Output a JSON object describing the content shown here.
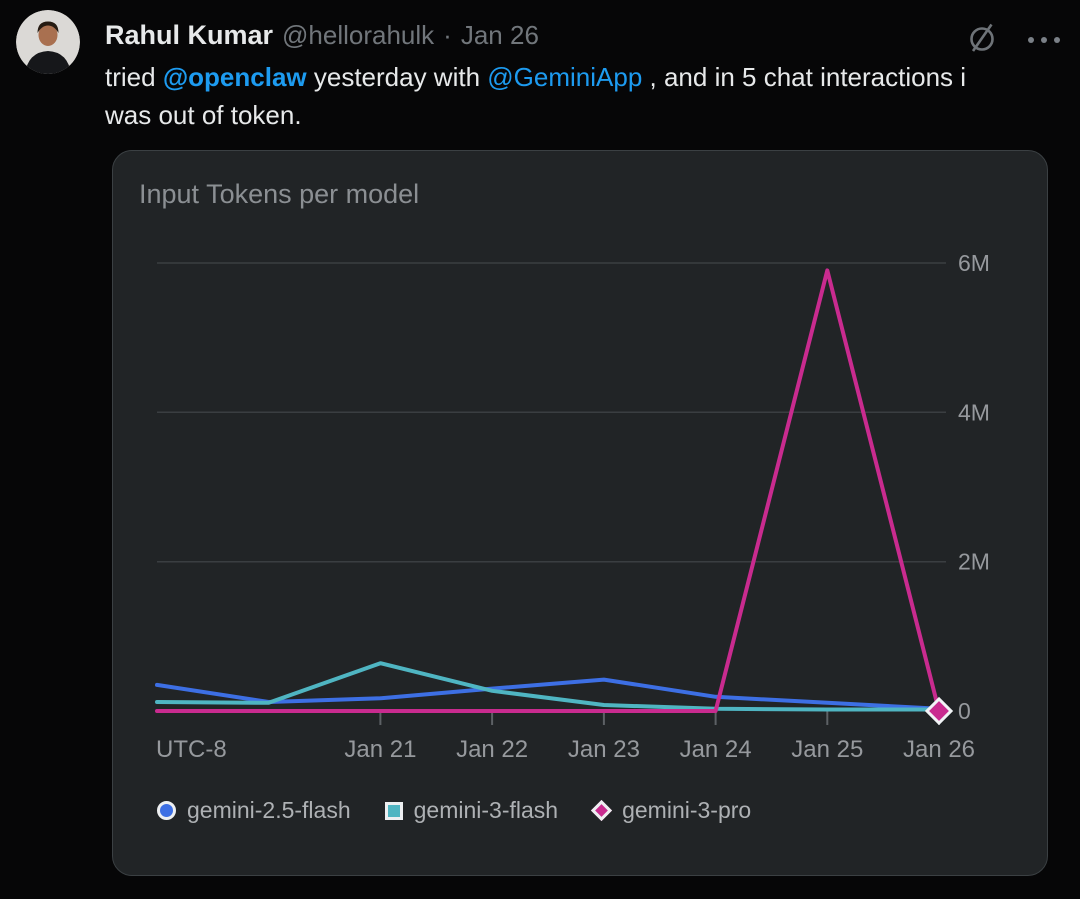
{
  "post": {
    "author": {
      "name": "Rahul Kumar",
      "handle": "@hellorahulk",
      "separator": "·",
      "date": "Jan 26"
    },
    "text_segments": [
      {
        "t": "text",
        "v": "tried "
      },
      {
        "t": "mention_bold",
        "v": "@openclaw"
      },
      {
        "t": "text",
        "v": " yesterday with "
      },
      {
        "t": "mention",
        "v": "@GeminiApp"
      },
      {
        "t": "text",
        "v": " , and in 5 chat interactions i"
      },
      {
        "t": "br"
      },
      {
        "t": "text",
        "v": "was out of token."
      }
    ],
    "icons": {
      "grok": "grok-slashed-circle",
      "more": "more-options-ellipsis"
    },
    "colors": {
      "mention_blue": "#1d9bf0",
      "text_primary": "#e7e9ea",
      "text_secondary": "#71767b"
    }
  },
  "chart_card": {
    "title": "Input Tokens per model",
    "background": "#212426"
  },
  "chart_data": {
    "type": "line",
    "title": "Input Tokens per model",
    "y_unit": "tokens (M = millions)",
    "num_points": 8,
    "x_ticks": [
      {
        "index": 0,
        "label": "UTC-8"
      },
      {
        "index": 2,
        "label": "Jan 21"
      },
      {
        "index": 3,
        "label": "Jan 22"
      },
      {
        "index": 4,
        "label": "Jan 23"
      },
      {
        "index": 5,
        "label": "Jan 24"
      },
      {
        "index": 6,
        "label": "Jan 25"
      },
      {
        "index": 7,
        "label": "Jan 26"
      }
    ],
    "y_ticks": [
      {
        "value": 0,
        "label": "0"
      },
      {
        "value": 2,
        "label": "2M"
      },
      {
        "value": 4,
        "label": "4M"
      },
      {
        "value": 6,
        "label": "6M"
      }
    ],
    "ylim": [
      0,
      6.5
    ],
    "grid": "horizontal",
    "legend_position": "bottom",
    "series": [
      {
        "name": "gemini-2.5-flash",
        "color": "#3d6fe4",
        "marker": "circle",
        "values_M": [
          0.35,
          0.12,
          0.17,
          0.3,
          0.42,
          0.19,
          0.11,
          0.03
        ]
      },
      {
        "name": "gemini-3-flash",
        "color": "#4fb5c2",
        "marker": "square",
        "values_M": [
          0.12,
          0.11,
          0.64,
          0.27,
          0.08,
          0.03,
          0.02,
          0.02
        ]
      },
      {
        "name": "gemini-3-pro",
        "color": "#c92b8f",
        "marker": "diamond",
        "end_marker": true,
        "values_M": [
          0,
          0,
          0,
          0,
          0,
          0,
          5.9,
          0
        ]
      }
    ]
  }
}
